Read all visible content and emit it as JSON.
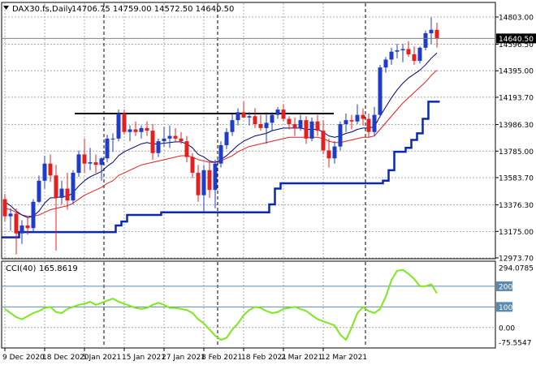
{
  "header": {
    "symbol": "DAX30.fs,Daily",
    "ohlc": "14706.75 14759.00 14572.50 14640.50"
  },
  "indicator": {
    "name": "CCI(40)",
    "value": "165.8619",
    "levels": [
      {
        "label": "200",
        "value": 200
      },
      {
        "label": "100",
        "value": 100
      }
    ]
  },
  "price_axis": {
    "ticks": [
      "14803.00",
      "14596.50",
      "14395.00",
      "14193.70",
      "13986.30",
      "13785.00",
      "13583.70",
      "13376.30",
      "13175.00",
      "12973.70"
    ],
    "current_price": "14640.50"
  },
  "indicator_axis": {
    "ticks": [
      "294.0785",
      "200",
      "100",
      "0.00",
      "-75.5547"
    ]
  },
  "time_axis": {
    "labels": [
      "9 Dec 2020",
      "18 Dec 2020",
      "5 Jan 2021",
      "15 Jan 2021",
      "27 Jan 2021",
      "8 Feb 2021",
      "18 Feb 2021",
      "2 Mar 2021",
      "12 Mar 2021"
    ]
  },
  "colors": {
    "bull": "#1f3cc8",
    "bear": "#e41f1f",
    "ema_fast": "#000080",
    "ema_slow": "#e41f1f",
    "trail": "#0a28b4",
    "cci": "#7ee81f",
    "grid": "#a8a8a8",
    "level_line": "#5a8ab0"
  },
  "chart_data": {
    "type": "candlestick",
    "ylim": [
      12973.7,
      14803.0
    ],
    "candles": [
      {
        "o": 13420,
        "h": 13460,
        "l": 13250,
        "c": 13290
      },
      {
        "o": 13290,
        "h": 13350,
        "l": 13180,
        "c": 13310
      },
      {
        "o": 13310,
        "h": 13350,
        "l": 13000,
        "c": 13160
      },
      {
        "o": 13160,
        "h": 13260,
        "l": 13080,
        "c": 13220
      },
      {
        "o": 13220,
        "h": 13280,
        "l": 13150,
        "c": 13200
      },
      {
        "o": 13200,
        "h": 13420,
        "l": 13170,
        "c": 13400
      },
      {
        "o": 13400,
        "h": 13600,
        "l": 13390,
        "c": 13560
      },
      {
        "o": 13560,
        "h": 13750,
        "l": 13500,
        "c": 13690
      },
      {
        "o": 13690,
        "h": 13760,
        "l": 13550,
        "c": 13600
      },
      {
        "o": 13600,
        "h": 13680,
        "l": 13030,
        "c": 13430
      },
      {
        "o": 13430,
        "h": 13560,
        "l": 13380,
        "c": 13500
      },
      {
        "o": 13500,
        "h": 13620,
        "l": 13340,
        "c": 13410
      },
      {
        "o": 13410,
        "h": 13640,
        "l": 13380,
        "c": 13620
      },
      {
        "o": 13620,
        "h": 13790,
        "l": 13590,
        "c": 13760
      },
      {
        "o": 13760,
        "h": 13880,
        "l": 13620,
        "c": 13690
      },
      {
        "o": 13690,
        "h": 13810,
        "l": 13640,
        "c": 13700
      },
      {
        "o": 13700,
        "h": 13760,
        "l": 13620,
        "c": 13680
      },
      {
        "o": 13680,
        "h": 13740,
        "l": 13560,
        "c": 13730
      },
      {
        "o": 13730,
        "h": 13910,
        "l": 13700,
        "c": 13880
      },
      {
        "o": 13880,
        "h": 13920,
        "l": 13780,
        "c": 13880
      },
      {
        "o": 13880,
        "h": 14100,
        "l": 13860,
        "c": 14070
      },
      {
        "o": 14070,
        "h": 14100,
        "l": 13910,
        "c": 13930
      },
      {
        "o": 13930,
        "h": 13980,
        "l": 13860,
        "c": 13950
      },
      {
        "o": 13950,
        "h": 14010,
        "l": 13900,
        "c": 13930
      },
      {
        "o": 13930,
        "h": 13980,
        "l": 13880,
        "c": 13960
      },
      {
        "o": 13960,
        "h": 14010,
        "l": 13900,
        "c": 13940
      },
      {
        "o": 13940,
        "h": 13990,
        "l": 13720,
        "c": 13770
      },
      {
        "o": 13770,
        "h": 13880,
        "l": 13740,
        "c": 13860
      },
      {
        "o": 13860,
        "h": 13970,
        "l": 13820,
        "c": 13880
      },
      {
        "o": 13880,
        "h": 13980,
        "l": 13810,
        "c": 13900
      },
      {
        "o": 13900,
        "h": 13960,
        "l": 13850,
        "c": 13880
      },
      {
        "o": 13880,
        "h": 13930,
        "l": 13840,
        "c": 13860
      },
      {
        "o": 13860,
        "h": 13900,
        "l": 13700,
        "c": 13740
      },
      {
        "o": 13740,
        "h": 13770,
        "l": 13580,
        "c": 13620
      },
      {
        "o": 13620,
        "h": 13680,
        "l": 13400,
        "c": 13450
      },
      {
        "o": 13450,
        "h": 13680,
        "l": 13330,
        "c": 13640
      },
      {
        "o": 13640,
        "h": 13700,
        "l": 13430,
        "c": 13490
      },
      {
        "o": 13490,
        "h": 13720,
        "l": 13350,
        "c": 13690
      },
      {
        "o": 13690,
        "h": 13860,
        "l": 13660,
        "c": 13830
      },
      {
        "o": 13830,
        "h": 13960,
        "l": 13800,
        "c": 13930
      },
      {
        "o": 13930,
        "h": 14070,
        "l": 13900,
        "c": 14020
      },
      {
        "o": 14020,
        "h": 14110,
        "l": 13980,
        "c": 14080
      },
      {
        "o": 14080,
        "h": 14160,
        "l": 14040,
        "c": 14040
      },
      {
        "o": 14040,
        "h": 14080,
        "l": 13980,
        "c": 14050
      },
      {
        "o": 14050,
        "h": 14110,
        "l": 13960,
        "c": 13990
      },
      {
        "o": 13990,
        "h": 14060,
        "l": 13940,
        "c": 13960
      },
      {
        "o": 13960,
        "h": 14080,
        "l": 13840,
        "c": 14000
      },
      {
        "o": 14000,
        "h": 14080,
        "l": 13940,
        "c": 14060
      },
      {
        "o": 14060,
        "h": 14120,
        "l": 14030,
        "c": 14100
      },
      {
        "o": 14100,
        "h": 14140,
        "l": 14010,
        "c": 14030
      },
      {
        "o": 14030,
        "h": 14050,
        "l": 13950,
        "c": 13990
      },
      {
        "o": 13990,
        "h": 14040,
        "l": 13900,
        "c": 13960
      },
      {
        "o": 13960,
        "h": 14060,
        "l": 13940,
        "c": 14020
      },
      {
        "o": 14020,
        "h": 14050,
        "l": 13840,
        "c": 13880
      },
      {
        "o": 13880,
        "h": 14040,
        "l": 13860,
        "c": 14010
      },
      {
        "o": 14010,
        "h": 14060,
        "l": 13900,
        "c": 13940
      },
      {
        "o": 13940,
        "h": 14020,
        "l": 13760,
        "c": 13790
      },
      {
        "o": 13790,
        "h": 13880,
        "l": 13660,
        "c": 13730
      },
      {
        "o": 13730,
        "h": 13860,
        "l": 13690,
        "c": 13820
      },
      {
        "o": 13820,
        "h": 14010,
        "l": 13790,
        "c": 13990
      },
      {
        "o": 13990,
        "h": 14070,
        "l": 13930,
        "c": 14020
      },
      {
        "o": 14020,
        "h": 14060,
        "l": 13950,
        "c": 14010
      },
      {
        "o": 14010,
        "h": 14140,
        "l": 13990,
        "c": 14060
      },
      {
        "o": 14060,
        "h": 14110,
        "l": 13980,
        "c": 14030
      },
      {
        "o": 14030,
        "h": 14070,
        "l": 13890,
        "c": 13930
      },
      {
        "o": 13930,
        "h": 14120,
        "l": 13900,
        "c": 14060
      },
      {
        "o": 14060,
        "h": 14440,
        "l": 14040,
        "c": 14420
      },
      {
        "o": 14420,
        "h": 14500,
        "l": 14380,
        "c": 14480
      },
      {
        "o": 14480,
        "h": 14570,
        "l": 14440,
        "c": 14540
      },
      {
        "o": 14540,
        "h": 14600,
        "l": 14490,
        "c": 14550
      },
      {
        "o": 14550,
        "h": 14600,
        "l": 14460,
        "c": 14560
      },
      {
        "o": 14560,
        "h": 14620,
        "l": 14500,
        "c": 14520
      },
      {
        "o": 14520,
        "h": 14580,
        "l": 14440,
        "c": 14470
      },
      {
        "o": 14470,
        "h": 14580,
        "l": 14450,
        "c": 14570
      },
      {
        "o": 14570,
        "h": 14700,
        "l": 14550,
        "c": 14680
      },
      {
        "o": 14680,
        "h": 14800,
        "l": 14600,
        "c": 14706
      },
      {
        "o": 14706,
        "h": 14759,
        "l": 14572,
        "c": 14640
      }
    ],
    "ema_fast": [
      13400,
      13370,
      13330,
      13300,
      13280,
      13290,
      13330,
      13390,
      13430,
      13430,
      13440,
      13440,
      13470,
      13520,
      13560,
      13590,
      13610,
      13630,
      13670,
      13700,
      13750,
      13780,
      13800,
      13820,
      13840,
      13850,
      13840,
      13840,
      13845,
      13850,
      13855,
      13855,
      13840,
      13810,
      13760,
      13740,
      13710,
      13700,
      13720,
      13750,
      13790,
      13830,
      13860,
      13880,
      13900,
      13910,
      13920,
      13940,
      13950,
      13960,
      13960,
      13960,
      13960,
      13950,
      13950,
      13950,
      13930,
      13900,
      13890,
      13900,
      13920,
      13930,
      13950,
      13960,
      13960,
      13970,
      14050,
      14120,
      14190,
      14250,
      14300,
      14340,
      14370,
      14400,
      14440,
      14490,
      14530
    ],
    "ema_slow": [
      13350,
      13340,
      13320,
      13300,
      13290,
      13290,
      13300,
      13320,
      13340,
      13350,
      13360,
      13370,
      13390,
      13420,
      13450,
      13470,
      13490,
      13510,
      13540,
      13560,
      13600,
      13620,
      13640,
      13660,
      13680,
      13690,
      13700,
      13710,
      13720,
      13730,
      13740,
      13750,
      13750,
      13740,
      13720,
      13710,
      13700,
      13700,
      13710,
      13730,
      13750,
      13780,
      13800,
      13820,
      13830,
      13840,
      13850,
      13860,
      13870,
      13880,
      13890,
      13890,
      13890,
      13890,
      13890,
      13890,
      13880,
      13860,
      13850,
      13850,
      13860,
      13870,
      13880,
      13890,
      13890,
      13900,
      13950,
      14000,
      14050,
      14100,
      14150,
      14190,
      14230,
      14270,
      14310,
      14360,
      14400
    ],
    "trail": [
      13130,
      13130,
      13130,
      13170,
      13170,
      13170,
      13170,
      13170,
      13170,
      13170,
      13170,
      13170,
      13170,
      13170,
      13170,
      13170,
      13170,
      13170,
      13170,
      13170,
      13220,
      13250,
      13300,
      13300,
      13300,
      13300,
      13300,
      13300,
      13320,
      13320,
      13320,
      13320,
      13320,
      13320,
      13320,
      13320,
      13320,
      13320,
      13320,
      13320,
      13320,
      13320,
      13320,
      13320,
      13320,
      13320,
      13320,
      13380,
      13500,
      13540,
      13540,
      13540,
      13540,
      13540,
      13540,
      13540,
      13540,
      13540,
      13540,
      13540,
      13540,
      13540,
      13540,
      13540,
      13540,
      13540,
      13540,
      13560,
      13640,
      13780,
      13780,
      13810,
      13870,
      13920,
      14030,
      14160,
      14160
    ],
    "resistance": {
      "y": 14070,
      "from_index": 12,
      "to_index": 55
    },
    "cci": [
      90,
      70,
      50,
      40,
      55,
      70,
      80,
      95,
      100,
      75,
      70,
      90,
      100,
      110,
      115,
      125,
      110,
      120,
      130,
      140,
      125,
      115,
      105,
      95,
      90,
      95,
      110,
      120,
      110,
      95,
      95,
      90,
      85,
      70,
      40,
      20,
      -10,
      -40,
      -60,
      -50,
      -10,
      20,
      60,
      85,
      100,
      95,
      80,
      70,
      75,
      90,
      95,
      100,
      90,
      80,
      60,
      40,
      30,
      20,
      10,
      -35,
      -60,
      0,
      70,
      100,
      80,
      70,
      90,
      150,
      230,
      275,
      280,
      260,
      235,
      200,
      200,
      210,
      165.86
    ],
    "cci_ylim": [
      -75.5547,
      294.0785
    ],
    "xlabels_index": [
      0,
      7,
      14,
      21,
      28,
      35,
      42,
      49,
      56
    ]
  }
}
